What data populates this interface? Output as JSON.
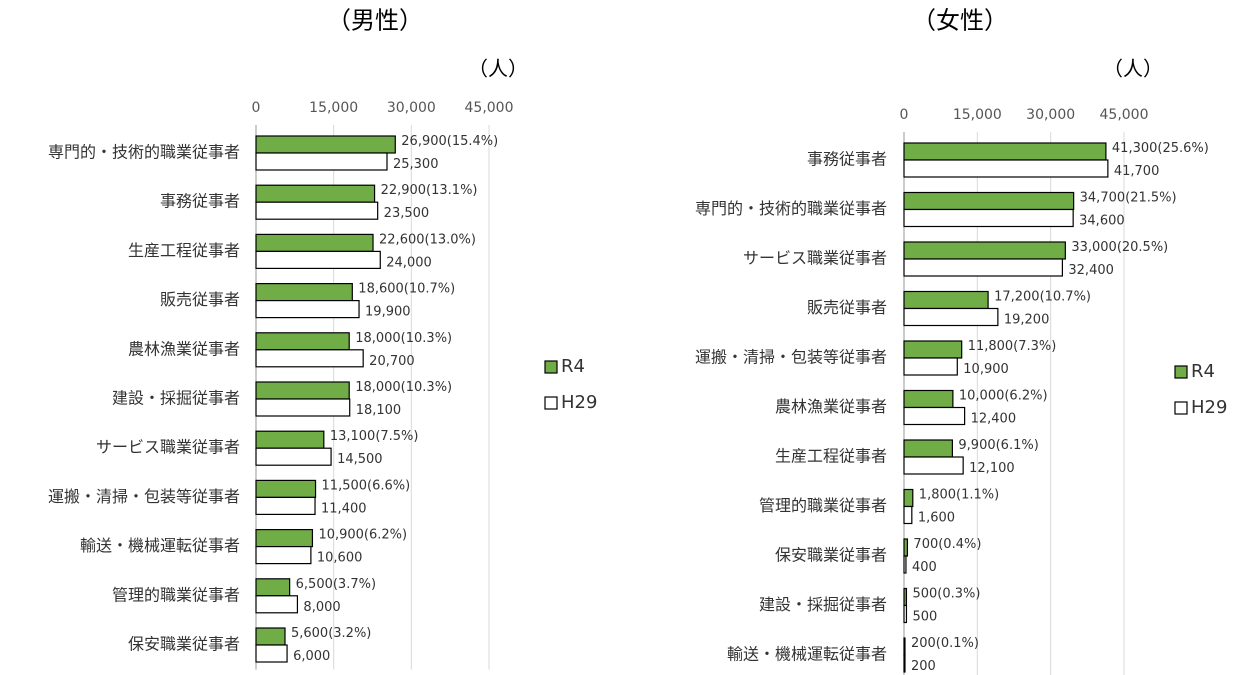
{
  "chart_data": [
    {
      "type": "bar",
      "orientation": "horizontal",
      "title": "（男性）",
      "unit": "（人）",
      "categories": [
        "専門的・技術的職業従事者",
        "事務従事者",
        "生産工程従事者",
        "販売従事者",
        "農林漁業従事者",
        "建設・採掘従事者",
        "サービス職業従事者",
        "運搬・清掃・包装等従事者",
        "輸送・機械運転従事者",
        "管理的職業従事者",
        "保安職業従事者"
      ],
      "series": [
        {
          "name": "R4",
          "color": "#70ad47",
          "values": [
            26900,
            22900,
            22600,
            18600,
            18000,
            18000,
            13100,
            11500,
            10900,
            6500,
            5600
          ],
          "value_labels": [
            "26,900(15.4%)",
            "22,900(13.1%)",
            "22,600(13.0%)",
            "18,600(10.7%)",
            "18,000(10.3%)",
            "18,000(10.3%)",
            "13,100(7.5%)",
            "11,500(6.6%)",
            "10,900(6.2%)",
            "6,500(3.7%)",
            "5,600(3.2%)"
          ]
        },
        {
          "name": "H29",
          "color": "#ffffff",
          "values": [
            25300,
            23500,
            24000,
            19900,
            20700,
            18100,
            14500,
            11400,
            10600,
            8000,
            6000
          ],
          "value_labels": [
            "25,300",
            "23,500",
            "24,000",
            "19,900",
            "20,700",
            "18,100",
            "14,500",
            "11,400",
            "10,600",
            "8,000",
            "6,000"
          ]
        }
      ],
      "xlim": [
        0,
        45000
      ],
      "xticks": [
        0,
        {
          "value": 15000,
          "label": "15,000"
        },
        {
          "value": 30000,
          "label": "30,000"
        },
        {
          "value": 45000,
          "label": "45,000"
        }
      ],
      "grid": true,
      "legend": "right"
    },
    {
      "type": "bar",
      "orientation": "horizontal",
      "title": "（女性）",
      "unit": "（人）",
      "categories": [
        "事務従事者",
        "専門的・技術的職業従事者",
        "サービス職業従事者",
        "販売従事者",
        "運搬・清掃・包装等従事者",
        "農林漁業従事者",
        "生産工程従事者",
        "管理的職業従事者",
        "保安職業従事者",
        "建設・採掘従事者",
        "輸送・機械運転従事者"
      ],
      "series": [
        {
          "name": "R4",
          "color": "#70ad47",
          "values": [
            41300,
            34700,
            33000,
            17200,
            11800,
            10000,
            9900,
            1800,
            700,
            500,
            200
          ],
          "value_labels": [
            "41,300(25.6%)",
            "34,700(21.5%)",
            "33,000(20.5%)",
            "17,200(10.7%)",
            "11,800(7.3%)",
            "10,000(6.2%)",
            "9,900(6.1%)",
            "1,800(1.1%)",
            "700(0.4%)",
            "500(0.3%)",
            "200(0.1%)"
          ]
        },
        {
          "name": "H29",
          "color": "#ffffff",
          "values": [
            41700,
            34600,
            32400,
            19200,
            10900,
            12400,
            12100,
            1600,
            400,
            500,
            200
          ],
          "value_labels": [
            "41,700",
            "34,600",
            "32,400",
            "19,200",
            "10,900",
            "12,400",
            "12,100",
            "1,600",
            "400",
            "500",
            "200"
          ]
        }
      ],
      "xlim": [
        0,
        45000
      ],
      "xticks": [
        0,
        {
          "value": 15000,
          "label": "15,000"
        },
        {
          "value": 30000,
          "label": "30,000"
        },
        {
          "value": 45000,
          "label": "45,000"
        }
      ],
      "grid": true,
      "legend": "right"
    }
  ]
}
